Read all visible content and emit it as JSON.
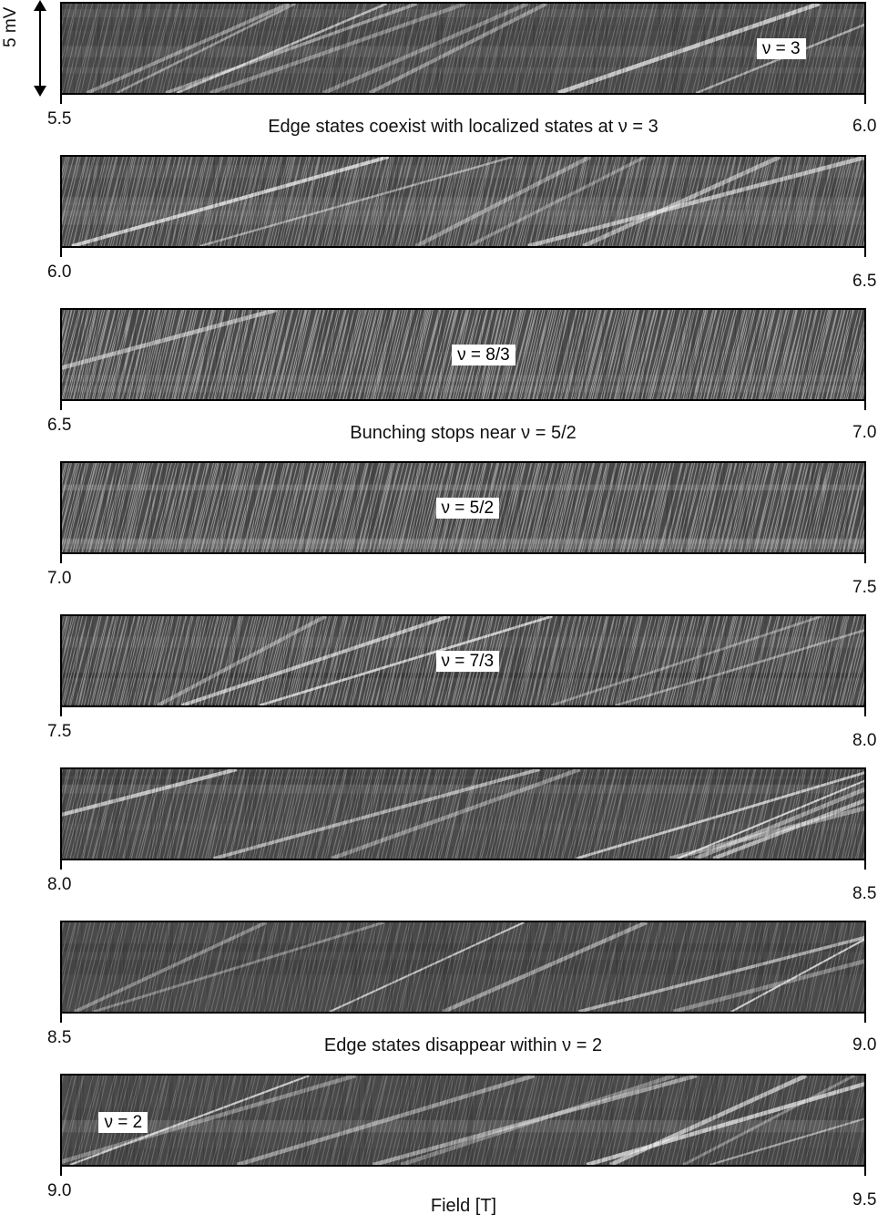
{
  "chart_data": {
    "type": "heatmap",
    "title": "",
    "xlabel": "Field [T]",
    "ylabel": "5 mV",
    "scale_bar": "5 mV",
    "colormap": "grayscale",
    "panels": [
      {
        "x_start": "5.5",
        "x_end": "6.0",
        "xlim": [
          5.5,
          6.0
        ],
        "caption": "Edge states coexist with localized states at ν = 3",
        "nu_label": "ν = 3",
        "nu_x": 5.95,
        "texture": {
          "fine": 0.35,
          "diag_lines": 0.9,
          "h_bands": 0.2
        }
      },
      {
        "x_start": "6.0",
        "x_end": "6.5",
        "xlim": [
          6.0,
          6.5
        ],
        "caption": "",
        "nu_label": "",
        "nu_x": null,
        "texture": {
          "fine": 0.7,
          "diag_lines": 0.6,
          "h_bands": 0.2
        }
      },
      {
        "x_start": "6.5",
        "x_end": "7.0",
        "xlim": [
          6.5,
          7.0
        ],
        "caption": "Bunching stops near ν = 5/2",
        "nu_label": "ν = 8/3",
        "nu_x": 6.76,
        "texture": {
          "fine": 1.0,
          "diag_lines": 0.05,
          "h_bands": 0.1
        }
      },
      {
        "x_start": "7.0",
        "x_end": "7.5",
        "xlim": [
          7.0,
          7.5
        ],
        "caption": "",
        "nu_label": "ν = 5/2",
        "nu_x": 7.25,
        "texture": {
          "fine": 0.9,
          "diag_lines": 0.0,
          "h_bands": 0.5
        }
      },
      {
        "x_start": "7.5",
        "x_end": "8.0",
        "xlim": [
          7.5,
          8.0
        ],
        "caption": "",
        "nu_label": "ν = 7/3",
        "nu_x": 7.75,
        "texture": {
          "fine": 0.8,
          "diag_lines": 0.5,
          "h_bands": 0.6
        }
      },
      {
        "x_start": "8.0",
        "x_end": "8.5",
        "xlim": [
          8.0,
          8.5
        ],
        "caption": "",
        "nu_label": "",
        "nu_x": null,
        "texture": {
          "fine": 0.5,
          "diag_lines": 0.8,
          "h_bands": 0.2
        }
      },
      {
        "x_start": "8.5",
        "x_end": "9.0",
        "xlim": [
          8.5,
          9.0
        ],
        "caption": "Edge states disappear within ν = 2",
        "nu_label": "",
        "nu_x": null,
        "texture": {
          "fine": 0.3,
          "diag_lines": 0.7,
          "h_bands": 0.4
        }
      },
      {
        "x_start": "9.0",
        "x_end": "9.5",
        "xlim": [
          9.0,
          9.5
        ],
        "caption": "",
        "nu_label": "ν = 2",
        "nu_x": 9.04,
        "texture": {
          "fine": 0.3,
          "diag_lines": 0.9,
          "h_bands": 0.3
        }
      }
    ]
  }
}
